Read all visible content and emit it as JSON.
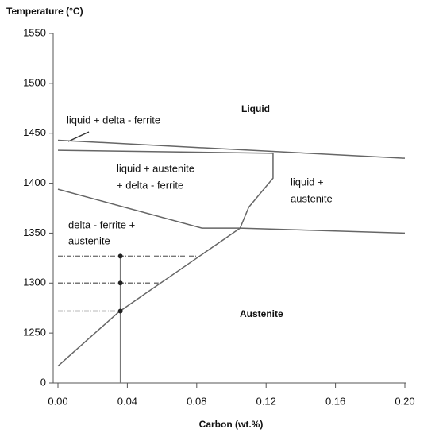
{
  "chart_data": {
    "type": "line",
    "title": "Temperature (°C)",
    "x_label": "Carbon (wt.%)",
    "xlim": [
      0,
      0.2
    ],
    "ylim": [
      1200,
      1550
    ],
    "xticks": [
      {
        "value": 0,
        "label": "0.00"
      },
      0.04,
      0.08,
      0.12,
      0.16,
      {
        "value": 0.2,
        "label": "0.20"
      }
    ],
    "yticks": [
      {
        "value": 1200,
        "label": "0"
      },
      1250,
      1300,
      1350,
      1400,
      1450,
      1500,
      1550
    ],
    "series": [
      {
        "color": "#666",
        "x": [
          0,
          0.2
        ],
        "values": [
          1443,
          1425
        ]
      },
      {
        "color": "#666",
        "x": [
          0,
          0.124
        ],
        "values": [
          1433,
          1430
        ]
      },
      {
        "color": "#666",
        "x": [
          0.124,
          0.124,
          0.11,
          0.105
        ],
        "values": [
          1430,
          1405,
          1376,
          1355
        ]
      },
      {
        "color": "#666",
        "x": [
          0,
          0.083,
          0.105,
          0.2
        ],
        "values": [
          1394,
          1355,
          1355,
          1350
        ]
      },
      {
        "color": "#666",
        "x": [
          0,
          0.035,
          0.105
        ],
        "values": [
          1217,
          1271,
          1355
        ]
      },
      {
        "color": "#777",
        "dashed": true,
        "x": [
          0,
          0.081
        ],
        "values": [
          1327,
          1327
        ]
      },
      {
        "color": "#777",
        "dashed": true,
        "x": [
          0,
          0.058
        ],
        "values": [
          1300,
          1300
        ]
      },
      {
        "color": "#777",
        "dashed": true,
        "x": [
          0,
          0.035
        ],
        "values": [
          1272,
          1272
        ]
      },
      {
        "color": "#777",
        "x": [
          0.036,
          0.036
        ],
        "values": [
          1200,
          1327
        ]
      },
      {
        "color": "#222",
        "marker": true,
        "x": [
          0.036,
          0.036,
          0.036
        ],
        "values": [
          1327,
          1300,
          1272
        ]
      }
    ],
    "annotations": [
      {
        "text": "Liquid"
      },
      {
        "text": "liquid + delta - ferrite"
      },
      {
        "lines": [
          "liquid + austenite",
          "+ delta - ferrite"
        ]
      },
      {
        "lines": [
          "liquid +",
          "austenite"
        ]
      },
      {
        "lines": [
          "delta - ferrite +",
          "austenite"
        ]
      },
      {
        "text": "Austenite"
      }
    ]
  }
}
